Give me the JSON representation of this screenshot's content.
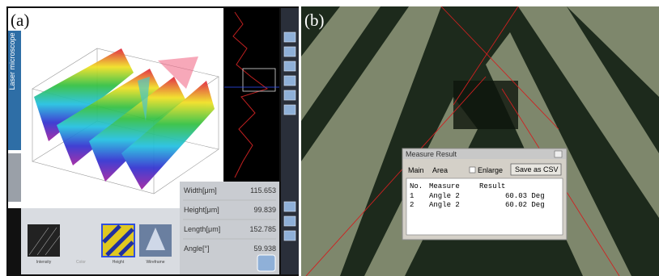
{
  "panels": [
    {
      "label": "(a)",
      "tab": "Laser microscope",
      "measurements": [
        {
          "label": "Width[μm]",
          "value": "115.653"
        },
        {
          "label": "Height[μm]",
          "value": "99.839"
        },
        {
          "label": "Length[μm]",
          "value": "152.785"
        },
        {
          "label": "Angle[°]",
          "value": "59.938"
        }
      ],
      "thumbnails": [
        "Intensity",
        "Color",
        "Height",
        "Wireframe"
      ]
    },
    {
      "label": "(b)",
      "window": {
        "title": "Measure Result",
        "tabs": [
          "Main",
          "Area"
        ],
        "checkbox": "Enlarge",
        "button": "Save as CSV",
        "columns": [
          "No.",
          "Measure",
          "Result"
        ],
        "rows": [
          [
            "1",
            "Angle 2",
            "60.03 Deg"
          ],
          [
            "2",
            "Angle 2",
            "60.02 Deg"
          ]
        ]
      }
    }
  ]
}
